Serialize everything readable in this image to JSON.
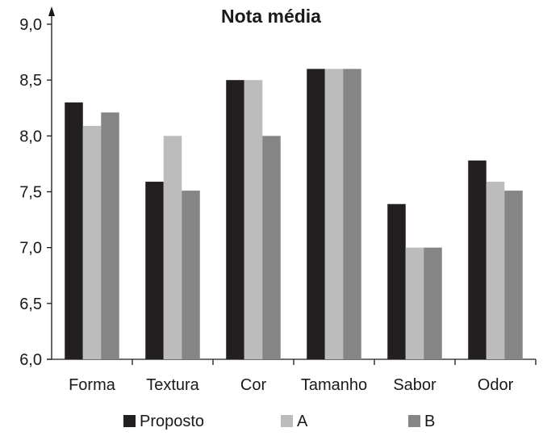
{
  "chart_data": {
    "type": "bar",
    "title": "Nota média",
    "xlabel": "",
    "ylabel": "",
    "categories": [
      "Forma",
      "Textura",
      "Cor",
      "Tamanho",
      "Sabor",
      "Odor"
    ],
    "series": [
      {
        "name": "Proposto",
        "color": "#231f20",
        "values": [
          8.3,
          7.59,
          8.5,
          8.6,
          7.39,
          7.78
        ]
      },
      {
        "name": "A",
        "color": "#bcbcbc",
        "values": [
          8.09,
          8.0,
          8.5,
          8.6,
          7.0,
          7.59
        ]
      },
      {
        "name": "B",
        "color": "#858585",
        "values": [
          8.21,
          7.51,
          8.0,
          8.6,
          7.0,
          7.51
        ]
      }
    ],
    "ylim": [
      6.0,
      9.0
    ],
    "yticks": [
      "6,0",
      "6,5",
      "7,0",
      "7,5",
      "8,0",
      "8,5",
      "9,0"
    ],
    "grid": false,
    "legend_position": "bottom"
  }
}
